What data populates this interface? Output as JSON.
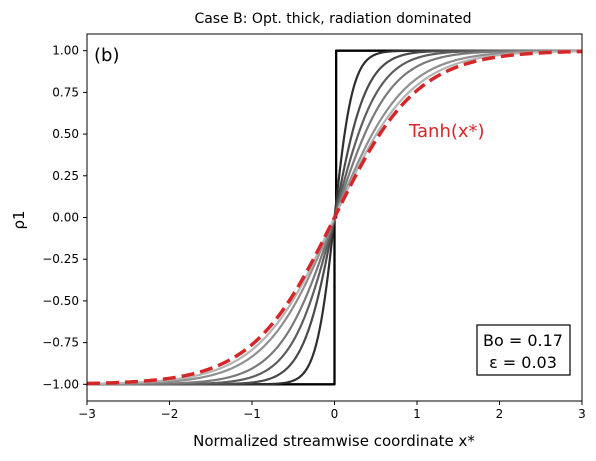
{
  "chart_data": {
    "type": "line",
    "title": "Case B: Opt. thick, radiation dominated",
    "panel_label": "(b)",
    "xlabel": "Normalized streamwise coordinate x*",
    "ylabel": "ρ1",
    "xlim": [
      -3,
      3
    ],
    "ylim": [
      -1.1,
      1.1
    ],
    "xticks": [
      -3,
      -2,
      -1,
      0,
      1,
      2,
      3
    ],
    "xtick_labels": [
      "−3",
      "−2",
      "−1",
      "0",
      "1",
      "2",
      "3"
    ],
    "yticks": [
      -1.0,
      -0.75,
      -0.5,
      -0.25,
      0.0,
      0.25,
      0.5,
      0.75,
      1.0
    ],
    "ytick_labels": [
      "−1.00",
      "−0.75",
      "−0.50",
      "−0.25",
      "0.00",
      "0.25",
      "0.50",
      "0.75",
      "1.00"
    ],
    "grid": false,
    "legend": "none",
    "series": [
      {
        "kind": "step",
        "color": "#000000",
        "x": [
          -3,
          0,
          0,
          0.02,
          0.02,
          3
        ],
        "y": [
          -1,
          -1,
          0,
          0,
          1,
          1
        ]
      },
      {
        "kind": "tanh",
        "scale": 4.5,
        "color": "#2e2e2e",
        "x": [
          -3,
          -2,
          -1,
          -0.5,
          -0.25,
          0,
          0.25,
          0.5,
          1,
          2,
          3
        ],
        "y": [
          -1.0,
          -1.0,
          -1.0,
          -0.978,
          -0.809,
          0.0,
          0.809,
          0.978,
          1.0,
          1.0,
          1.0
        ]
      },
      {
        "kind": "tanh",
        "scale": 2.6,
        "color": "#4a4a4a",
        "x": [
          -3,
          -2,
          -1,
          -0.5,
          -0.25,
          0,
          0.25,
          0.5,
          1,
          2,
          3
        ],
        "y": [
          -1.0,
          -1.0,
          -0.989,
          -0.862,
          -0.572,
          0.0,
          0.572,
          0.862,
          0.989,
          1.0,
          1.0
        ]
      },
      {
        "kind": "tanh",
        "scale": 1.9,
        "color": "#5e5e5e",
        "x": [
          -3,
          -2,
          -1,
          -0.5,
          -0.25,
          0,
          0.25,
          0.5,
          1,
          2,
          3
        ],
        "y": [
          -1.0,
          -0.999,
          -0.956,
          -0.74,
          -0.45,
          0.0,
          0.45,
          0.74,
          0.956,
          0.999,
          1.0
        ]
      },
      {
        "kind": "tanh",
        "scale": 1.5,
        "color": "#7a7a7a",
        "x": [
          -3,
          -2,
          -1,
          -0.5,
          -0.25,
          0,
          0.25,
          0.5,
          1,
          2,
          3
        ],
        "y": [
          -1.0,
          -0.995,
          -0.905,
          -0.635,
          -0.364,
          0.0,
          0.364,
          0.635,
          0.905,
          0.995,
          1.0
        ]
      },
      {
        "kind": "tanh",
        "scale": 1.2,
        "color": "#8f8f8f",
        "x": [
          -3,
          -2,
          -1,
          -0.5,
          -0.25,
          0,
          0.25,
          0.5,
          1,
          2,
          3
        ],
        "y": [
          -1.0,
          -0.984,
          -0.834,
          -0.537,
          -0.291,
          0.0,
          0.291,
          0.537,
          0.834,
          0.984,
          1.0
        ]
      },
      {
        "kind": "tanh",
        "scale": 1.08,
        "color": "#b4b4b4",
        "x": [
          -3,
          -2,
          -1,
          -0.5,
          -0.25,
          0,
          0.25,
          0.5,
          1,
          2,
          3
        ],
        "y": [
          -0.996,
          -0.974,
          -0.793,
          -0.495,
          -0.264,
          0.0,
          0.264,
          0.495,
          0.793,
          0.974,
          0.996
        ]
      },
      {
        "kind": "tanh",
        "scale": 1.0,
        "color": "#d62728",
        "dashed": true,
        "x": [
          -3,
          -2,
          -1,
          -0.5,
          -0.25,
          0,
          0.25,
          0.5,
          1,
          2,
          3
        ],
        "y": [
          -0.995,
          -0.964,
          -0.762,
          -0.462,
          -0.245,
          0.0,
          0.245,
          0.462,
          0.762,
          0.964,
          0.995
        ]
      }
    ],
    "annotations": {
      "tanh_label": "Tanh(x*)",
      "tanh_label_color": "#d62728",
      "box_line1": "Bo = 0.17",
      "box_line2": "ε = 0.03"
    }
  }
}
